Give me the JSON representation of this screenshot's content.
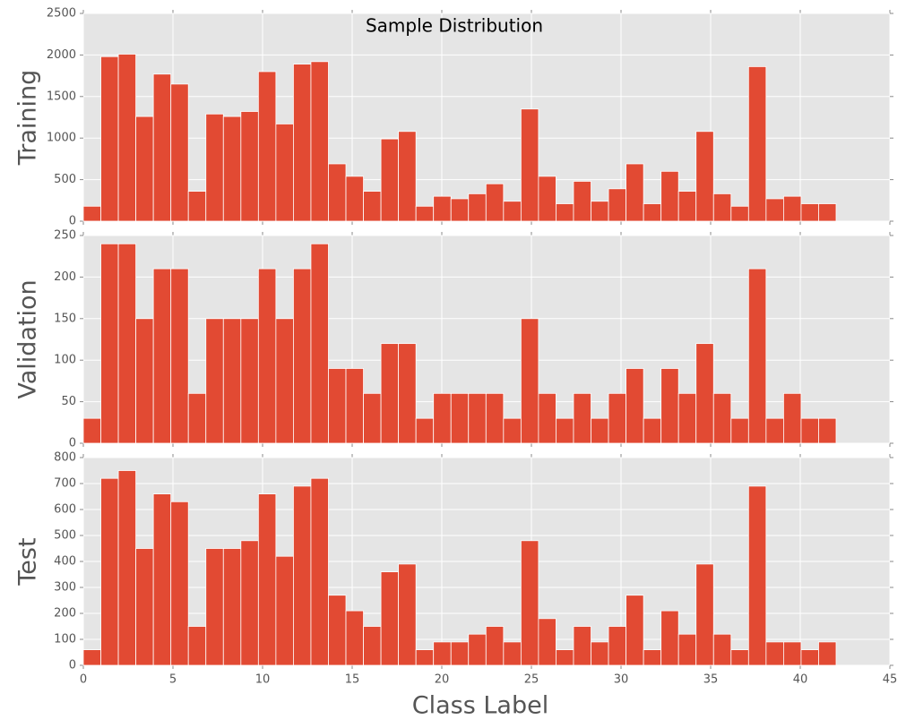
{
  "chart_data": [
    {
      "type": "histogram",
      "title": "Sample Distribution",
      "ylabel": "Training",
      "color": "#e24a33",
      "bins": [
        0,
        0.977,
        1.953,
        2.93,
        3.907,
        4.884,
        5.86,
        6.837,
        7.814,
        8.791,
        9.767,
        10.744,
        11.721,
        12.698,
        13.674,
        14.651,
        15.628,
        16.605,
        17.581,
        18.558,
        19.535,
        20.512,
        21.488,
        22.465,
        23.442,
        24.419,
        25.395,
        26.372,
        27.349,
        28.326,
        29.302,
        30.279,
        31.256,
        32.233,
        33.209,
        34.186,
        35.163,
        36.14,
        37.116,
        38.093,
        39.07,
        40.047,
        41.023,
        42
      ],
      "values": [
        180,
        1980,
        2010,
        1260,
        1770,
        1650,
        360,
        1290,
        1260,
        1320,
        1800,
        1170,
        1890,
        1920,
        690,
        540,
        360,
        990,
        1080,
        180,
        300,
        270,
        330,
        450,
        240,
        1350,
        540,
        210,
        480,
        240,
        390,
        690,
        210,
        600,
        360,
        1080,
        330,
        180,
        1860,
        270,
        300,
        210,
        210
      ],
      "xlim": [
        0,
        45
      ],
      "ylim": [
        0,
        2500
      ],
      "yticks": [
        0,
        500,
        1000,
        1500,
        2000,
        2500
      ],
      "grid": true
    },
    {
      "type": "histogram",
      "ylabel": "Validation",
      "color": "#e24a33",
      "bins": [
        0,
        0.977,
        1.953,
        2.93,
        3.907,
        4.884,
        5.86,
        6.837,
        7.814,
        8.791,
        9.767,
        10.744,
        11.721,
        12.698,
        13.674,
        14.651,
        15.628,
        16.605,
        17.581,
        18.558,
        19.535,
        20.512,
        21.488,
        22.465,
        23.442,
        24.419,
        25.395,
        26.372,
        27.349,
        28.326,
        29.302,
        30.279,
        31.256,
        32.233,
        33.209,
        34.186,
        35.163,
        36.14,
        37.116,
        38.093,
        39.07,
        40.047,
        41.023,
        42
      ],
      "values": [
        30,
        240,
        240,
        150,
        210,
        210,
        60,
        150,
        150,
        150,
        210,
        150,
        210,
        240,
        90,
        90,
        60,
        120,
        120,
        30,
        60,
        60,
        60,
        60,
        30,
        150,
        60,
        30,
        60,
        30,
        60,
        90,
        30,
        90,
        60,
        120,
        60,
        30,
        210,
        30,
        60,
        30,
        30
      ],
      "xlim": [
        0,
        45
      ],
      "ylim": [
        0,
        250
      ],
      "yticks": [
        0,
        50,
        100,
        150,
        200,
        250
      ],
      "grid": true
    },
    {
      "type": "histogram",
      "ylabel": "Test",
      "xlabel": "Class Label",
      "color": "#e24a33",
      "bins": [
        0,
        0.977,
        1.953,
        2.93,
        3.907,
        4.884,
        5.86,
        6.837,
        7.814,
        8.791,
        9.767,
        10.744,
        11.721,
        12.698,
        13.674,
        14.651,
        15.628,
        16.605,
        17.581,
        18.558,
        19.535,
        20.512,
        21.488,
        22.465,
        23.442,
        24.419,
        25.395,
        26.372,
        27.349,
        28.326,
        29.302,
        30.279,
        31.256,
        32.233,
        33.209,
        34.186,
        35.163,
        36.14,
        37.116,
        38.093,
        39.07,
        40.047,
        41.023,
        42
      ],
      "values": [
        60,
        720,
        750,
        450,
        660,
        630,
        150,
        450,
        450,
        480,
        660,
        420,
        690,
        720,
        270,
        210,
        150,
        360,
        390,
        60,
        90,
        90,
        120,
        150,
        90,
        480,
        180,
        60,
        150,
        90,
        150,
        270,
        60,
        210,
        120,
        390,
        120,
        60,
        690,
        90,
        90,
        60,
        90
      ],
      "xlim": [
        0,
        45
      ],
      "ylim": [
        0,
        800
      ],
      "yticks": [
        0,
        100,
        200,
        300,
        400,
        500,
        600,
        700,
        800
      ],
      "xticks": [
        0,
        5,
        10,
        15,
        20,
        25,
        30,
        35,
        40,
        45
      ],
      "grid": true
    }
  ]
}
